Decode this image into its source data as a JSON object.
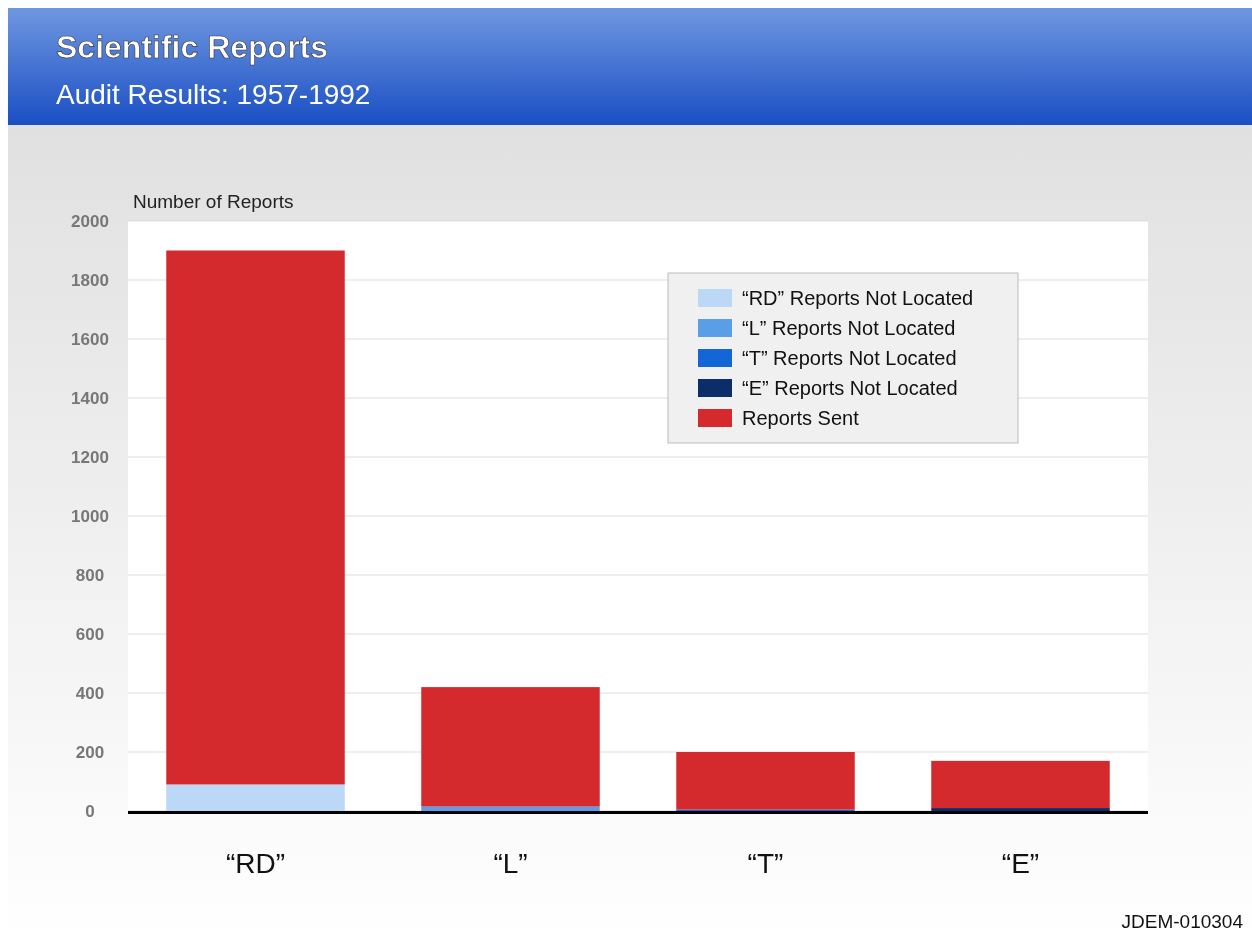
{
  "chart_data": {
    "type": "bar",
    "title": "Scientific Reports",
    "subtitle": "Audit Results: 1957-1992",
    "ylabel": "Number of Reports",
    "categories": [
      "“RD”",
      "“L”",
      "“T”",
      "“E”"
    ],
    "stacked": true,
    "series": [
      {
        "name": "“RD” Reports Not Located",
        "color": "#bcd8f7",
        "values": [
          90,
          null,
          null,
          null
        ]
      },
      {
        "name": "“L” Reports Not Located",
        "color": "#5b9ee8",
        "values": [
          null,
          15,
          null,
          null
        ]
      },
      {
        "name": "“T” Reports Not Located",
        "color": "#1366d6",
        "values": [
          null,
          null,
          5,
          null
        ]
      },
      {
        "name": "“E” Reports Not Located",
        "color": "#0b2e6b",
        "values": [
          null,
          null,
          null,
          10
        ]
      },
      {
        "name": "Reports Sent",
        "color": "#d42a2e",
        "values": [
          1810,
          405,
          195,
          160
        ]
      }
    ],
    "ylim": [
      0,
      2000
    ],
    "yticks": [
      0,
      200,
      400,
      600,
      800,
      1000,
      1200,
      1400,
      1600,
      1800,
      2000
    ],
    "grid": "y",
    "legend": "top right",
    "annotations": [
      "JDEM-010304"
    ]
  }
}
